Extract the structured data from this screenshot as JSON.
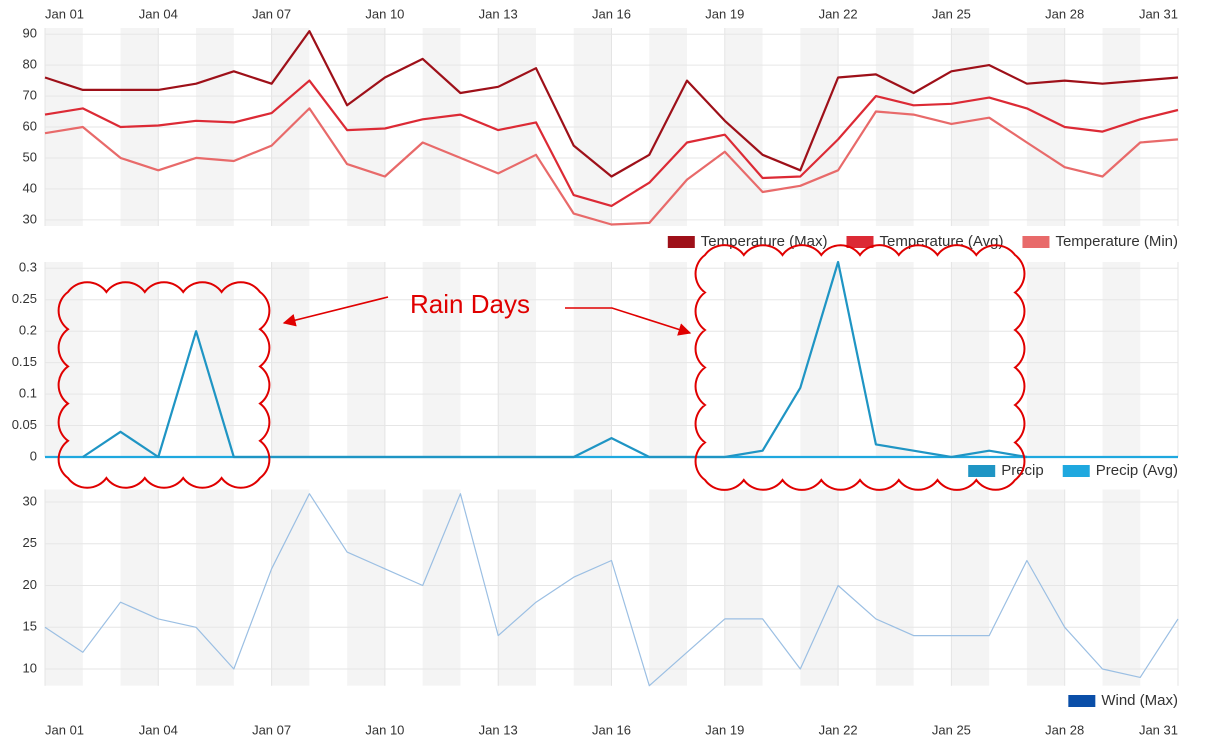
{
  "chart_data": [
    {
      "type": "line",
      "categories": [
        "Jan 01",
        null,
        null,
        "Jan 04",
        null,
        null,
        "Jan 07",
        null,
        null,
        "Jan 10",
        null,
        null,
        "Jan 13",
        null,
        null,
        "Jan 16",
        null,
        null,
        "Jan 19",
        null,
        null,
        "Jan 22",
        null,
        null,
        "Jan 25",
        null,
        null,
        "Jan 28",
        null,
        null,
        "Jan 31"
      ],
      "ylim": [
        28,
        92
      ],
      "yticks": [
        30,
        40,
        50,
        60,
        70,
        80,
        90
      ],
      "grid": true,
      "legend": "bottom-right",
      "series": [
        {
          "name": "Temperature (Max)",
          "color": "#9e1019",
          "values": [
            76,
            72,
            72,
            72,
            74,
            78,
            74,
            91,
            67,
            76,
            82,
            71,
            73,
            79,
            54,
            44,
            51,
            75,
            62,
            51,
            46,
            76,
            77,
            71,
            78,
            80,
            74,
            75,
            74,
            75,
            76
          ]
        },
        {
          "name": "Temperature (Avg)",
          "color": "#dc2a35",
          "values": [
            64,
            66,
            60,
            60.5,
            62,
            61.5,
            64.5,
            75,
            59,
            59.5,
            62.5,
            64,
            59,
            61.5,
            38,
            34.5,
            42,
            55,
            57.5,
            43.5,
            44,
            56,
            70,
            67,
            67.5,
            69.5,
            66,
            60,
            58.5,
            62.5,
            65.5
          ]
        },
        {
          "name": "Temperature (Min)",
          "color": "#e86a6a",
          "values": [
            58,
            60,
            50,
            46,
            50,
            49,
            54,
            66,
            48,
            44,
            55,
            50,
            45,
            51,
            32,
            28.5,
            29,
            43,
            52,
            39,
            41,
            46,
            65,
            64,
            61,
            63,
            55,
            47,
            44,
            55,
            56
          ]
        }
      ]
    },
    {
      "type": "line",
      "ylim": [
        0,
        0.31
      ],
      "yticks": [
        0,
        0.05,
        0.1,
        0.15,
        0.2,
        0.25,
        0.3
      ],
      "grid": true,
      "legend": "bottom-right",
      "annotation": "Rain Days",
      "series": [
        {
          "name": "Precip",
          "color": "#1f95c4",
          "values": [
            null,
            0,
            0.04,
            0,
            0.2,
            0,
            0,
            0,
            0,
            0,
            0,
            0,
            0,
            0,
            0,
            0.03,
            0,
            0,
            0,
            0.01,
            0.11,
            0.31,
            0.02,
            0.01,
            0,
            0.01,
            0,
            null,
            null,
            null,
            null
          ]
        },
        {
          "name": "Precip (Avg)",
          "color": "#1fa8df",
          "values": [
            0,
            0,
            0,
            0,
            0,
            0,
            0,
            0,
            0,
            0,
            0,
            0,
            0,
            0,
            0,
            0,
            0,
            0,
            0,
            0,
            0,
            0,
            0,
            0,
            0,
            0,
            0,
            0,
            0,
            0,
            0
          ]
        }
      ]
    },
    {
      "type": "line",
      "categories": [
        "Jan 01",
        null,
        null,
        "Jan 04",
        null,
        null,
        "Jan 07",
        null,
        null,
        "Jan 10",
        null,
        null,
        "Jan 13",
        null,
        null,
        "Jan 16",
        null,
        null,
        "Jan 19",
        null,
        null,
        "Jan 22",
        null,
        null,
        "Jan 25",
        null,
        null,
        "Jan 28",
        null,
        null,
        "Jan 31"
      ],
      "ylim": [
        8,
        31.5
      ],
      "yticks": [
        10,
        15,
        20,
        25,
        30
      ],
      "grid": true,
      "legend": "bottom-right",
      "series": [
        {
          "name": "Wind (Max)",
          "color": "#0a4ea8",
          "line_color": "#9bbfe3",
          "values": [
            15,
            12,
            18,
            16,
            15,
            10,
            22,
            31,
            24,
            22,
            20,
            31,
            14,
            18,
            21,
            23,
            8,
            12,
            16,
            16,
            10,
            20,
            16,
            14,
            14,
            14,
            23,
            15,
            10,
            9,
            16
          ]
        }
      ]
    }
  ]
}
